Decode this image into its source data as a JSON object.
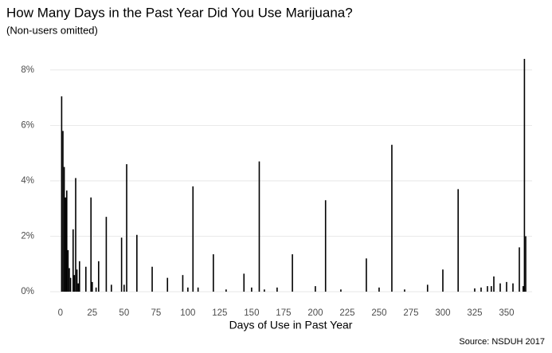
{
  "chart_data": {
    "type": "bar",
    "title": "How Many Days in the Past Year Did You Use Marijuana?",
    "subtitle": "(Non-users omitted)",
    "x_label": "Days of Use in Past Year",
    "caption": "Source: NSDUH 2017",
    "color": "#000000",
    "grid": true,
    "x": [
      1,
      2,
      3,
      4,
      5,
      6,
      7,
      8,
      10,
      11,
      12,
      13,
      14,
      15,
      20,
      24,
      25,
      28,
      30,
      36,
      40,
      48,
      50,
      52,
      60,
      72,
      84,
      96,
      100,
      104,
      108,
      120,
      130,
      144,
      150,
      156,
      160,
      170,
      182,
      200,
      208,
      220,
      240,
      250,
      260,
      270,
      288,
      300,
      312,
      325,
      330,
      335,
      338,
      340,
      345,
      350,
      355,
      360,
      363,
      364,
      365
    ],
    "values": [
      7.05,
      5.8,
      4.5,
      3.4,
      3.65,
      1.5,
      0.85,
      0.5,
      2.25,
      0.6,
      4.1,
      0.8,
      0.3,
      1.1,
      0.9,
      3.4,
      0.35,
      0.15,
      1.1,
      2.7,
      0.25,
      1.95,
      0.25,
      4.6,
      2.05,
      0.9,
      0.5,
      0.6,
      0.15,
      3.8,
      0.15,
      1.35,
      0.08,
      0.65,
      0.15,
      4.7,
      0.08,
      0.15,
      1.35,
      0.2,
      3.3,
      0.08,
      1.2,
      0.15,
      5.3,
      0.08,
      0.25,
      0.8,
      3.7,
      0.12,
      0.15,
      0.2,
      0.2,
      0.55,
      0.3,
      0.35,
      0.3,
      1.6,
      0.2,
      8.4,
      2.0
    ],
    "xlim": [
      -8,
      370
    ],
    "xticks": [
      0,
      25,
      50,
      75,
      100,
      125,
      150,
      175,
      200,
      225,
      250,
      275,
      300,
      325,
      350
    ],
    "ylim": [
      -0.2,
      8.8
    ],
    "yticks": [
      {
        "value": 0,
        "label": "0%"
      },
      {
        "value": 2,
        "label": "2%"
      },
      {
        "value": 4,
        "label": "4%"
      },
      {
        "value": 6,
        "label": "6%"
      },
      {
        "value": 8,
        "label": "8%"
      }
    ]
  }
}
